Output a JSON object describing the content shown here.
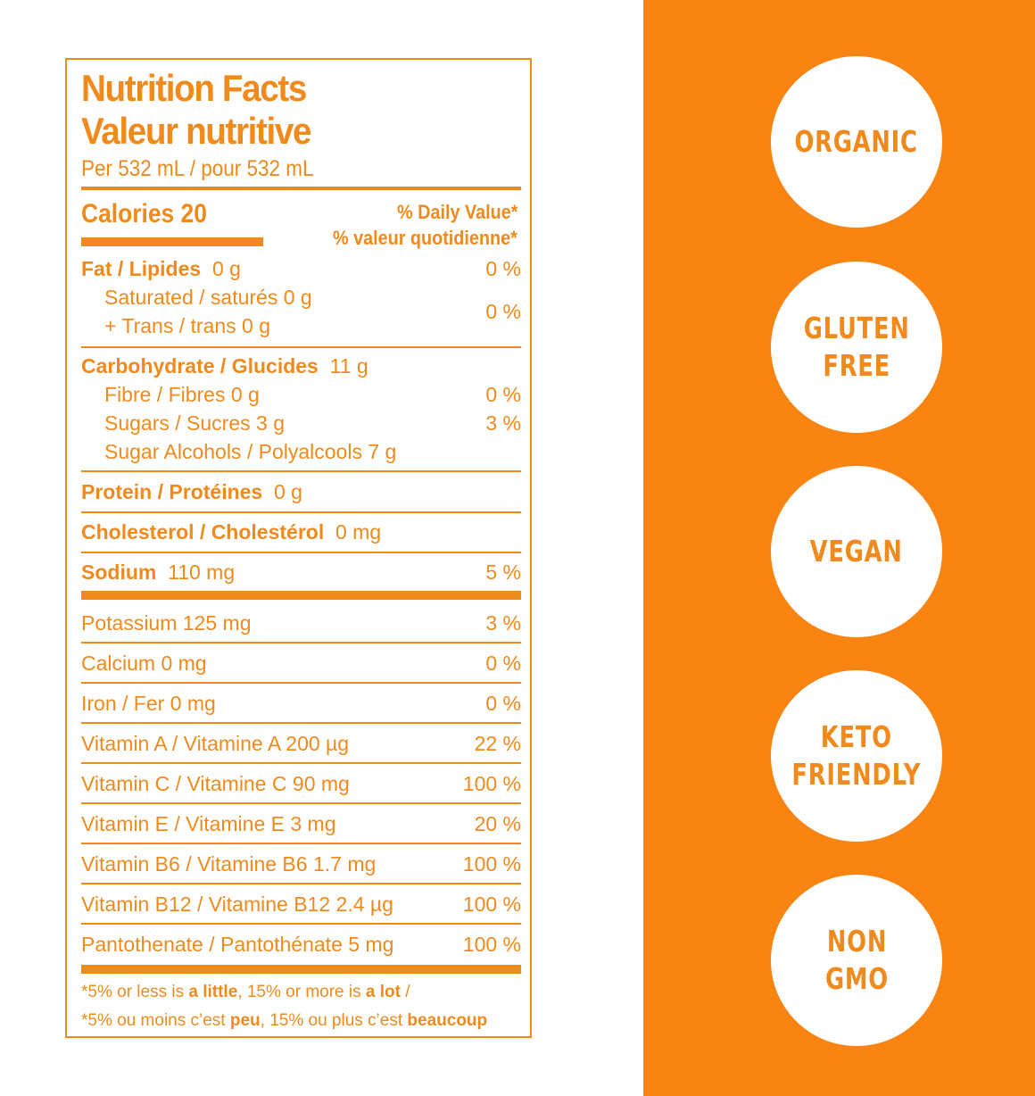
{
  "label": {
    "title_en": "Nutrition Facts",
    "title_fr": "Valeur nutritive",
    "per": "Per 532 mL / pour 532 mL",
    "calories": "Calories 20",
    "dv_en": "% Daily Value*",
    "dv_fr": "% valeur quotidienne*",
    "fat_name": "Fat / Lipides",
    "fat_amt": "0 g",
    "fat_pct": "0 %",
    "sat": "Saturated / saturés 0 g",
    "trans": "+ Trans / trans 0 g",
    "sat_pct": "0 %",
    "carb_name": "Carbohydrate / Glucides",
    "carb_amt": "11 g",
    "fibre": "Fibre / Fibres 0 g",
    "fibre_pct": "0 %",
    "sugars": "Sugars / Sucres 3 g",
    "sugars_pct": "3 %",
    "sugar_alc": "Sugar Alcohols / Polyalcools 7 g",
    "protein_name": "Protein / Protéines",
    "protein_amt": "0 g",
    "chol_name": "Cholesterol / Cholestérol",
    "chol_amt": "0 mg",
    "sodium_name": "Sodium",
    "sodium_amt": "110 mg",
    "sodium_pct": "5 %",
    "micros": [
      {
        "name": "Potassium 125 mg",
        "pct": "3 %"
      },
      {
        "name": "Calcium 0 mg",
        "pct": "0 %"
      },
      {
        "name": "Iron / Fer 0 mg",
        "pct": "0 %"
      },
      {
        "name": "Vitamin A / Vitamine A 200 µg",
        "pct": "22 %"
      },
      {
        "name": "Vitamin C / Vitamine C 90 mg",
        "pct": "100 %"
      },
      {
        "name": "Vitamin E / Vitamine E 3 mg",
        "pct": "20 %"
      },
      {
        "name": "Vitamin B6 / Vitamine B6 1.7 mg",
        "pct": "100 %"
      },
      {
        "name": "Vitamin B12 / Vitamine B12 2.4 µg",
        "pct": "100 %"
      },
      {
        "name": "Pantothenate / Pantothénate 5 mg",
        "pct": "100 %"
      }
    ],
    "foot1_a": "*5% or less is ",
    "foot1_b": "a little",
    "foot1_c": ", 15% or more is ",
    "foot1_d": "a lot",
    "foot1_e": " /",
    "foot2_a": "*5% ou moins c’est ",
    "foot2_b": "peu",
    "foot2_c": ", 15% ou plus c’est ",
    "foot2_d": "beaucoup"
  },
  "badges": [
    "ORGANIC",
    "GLUTEN\nFREE",
    "VEGAN",
    "KETO\nFRIENDLY",
    "NON\nGMO"
  ],
  "colors": {
    "accent": "#f98411",
    "text": "#f08a1c"
  }
}
